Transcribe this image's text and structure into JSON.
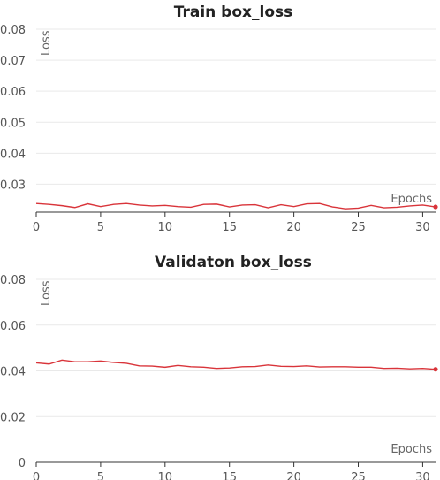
{
  "chart_data": [
    {
      "type": "line",
      "title": "Train box_loss",
      "ylabel": "Loss",
      "xlabel": "Epochs",
      "xlim": [
        0,
        31
      ],
      "ylim": [
        0.021,
        0.08
      ],
      "yticks": [
        0.03,
        0.04,
        0.05,
        0.06,
        0.07,
        0.08
      ],
      "ytick_labels": [
        "0.03",
        "0.04",
        "0.05",
        "0.06",
        "0.07",
        "0.08"
      ],
      "xticks": [
        0,
        5,
        10,
        15,
        20,
        25,
        30
      ],
      "xtick_labels": [
        "0",
        "5",
        "10",
        "15",
        "20",
        "25",
        "30"
      ],
      "grid": true,
      "series": [
        {
          "color": "#d9343a",
          "x": [
            0,
            1,
            2,
            3,
            4,
            5,
            6,
            7,
            8,
            9,
            10,
            11,
            12,
            13,
            14,
            15,
            16,
            17,
            18,
            19,
            20,
            21,
            22,
            23,
            24,
            25,
            26,
            27,
            28,
            29,
            30,
            31
          ],
          "y": [
            0.0238,
            0.0235,
            0.0231,
            0.0225,
            0.0237,
            0.0228,
            0.0235,
            0.0238,
            0.0233,
            0.023,
            0.0232,
            0.0228,
            0.0226,
            0.0235,
            0.0236,
            0.0227,
            0.0233,
            0.0234,
            0.0224,
            0.0234,
            0.0228,
            0.0237,
            0.0238,
            0.0227,
            0.0221,
            0.0223,
            0.0232,
            0.0224,
            0.0226,
            0.023,
            0.0233,
            0.0227
          ]
        }
      ]
    },
    {
      "type": "line",
      "title": "Validaton box_loss",
      "ylabel": "Loss",
      "xlabel": "Epochs",
      "xlim": [
        0,
        31
      ],
      "ylim": [
        0,
        0.08
      ],
      "yticks": [
        0,
        0.02,
        0.04,
        0.06,
        0.08
      ],
      "ytick_labels": [
        "0",
        "0.02",
        "0.04",
        "0.06",
        "0.08"
      ],
      "xticks": [
        0,
        5,
        10,
        15,
        20,
        25,
        30
      ],
      "xtick_labels": [
        "0",
        "5",
        "10",
        "15",
        "20",
        "25",
        "30"
      ],
      "grid": true,
      "series": [
        {
          "color": "#d9343a",
          "x": [
            0,
            1,
            2,
            3,
            4,
            5,
            6,
            7,
            8,
            9,
            10,
            11,
            12,
            13,
            14,
            15,
            16,
            17,
            18,
            19,
            20,
            21,
            22,
            23,
            24,
            25,
            26,
            27,
            28,
            29,
            30,
            31
          ],
          "y": [
            0.0435,
            0.043,
            0.0447,
            0.044,
            0.044,
            0.0443,
            0.0437,
            0.0433,
            0.0422,
            0.0421,
            0.0416,
            0.0424,
            0.0418,
            0.0416,
            0.0411,
            0.0413,
            0.0418,
            0.0419,
            0.0426,
            0.042,
            0.0419,
            0.0422,
            0.0417,
            0.0418,
            0.0418,
            0.0416,
            0.0416,
            0.0411,
            0.0412,
            0.0409,
            0.0411,
            0.0407
          ]
        }
      ]
    }
  ]
}
